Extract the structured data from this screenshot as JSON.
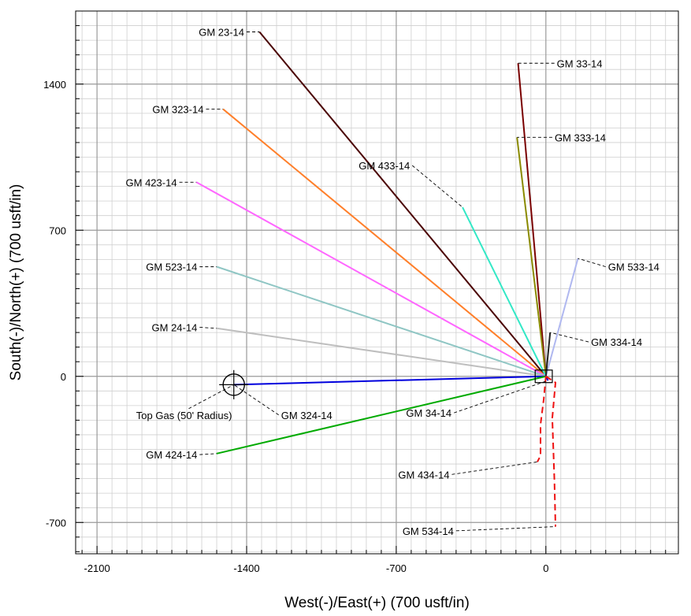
{
  "chart_data": {
    "type": "line",
    "xlabel": "West(-)/East(+) (700 usft/in)",
    "ylabel": "South(-)/North(+) (700 usft/in)",
    "xlim": [
      -2200,
      620
    ],
    "ylim": [
      -850,
      1750
    ],
    "x_ticks": [
      -2100,
      -1400,
      -700,
      0
    ],
    "y_ticks": [
      -700,
      0,
      700,
      1400
    ],
    "x_tick_labels": [
      "-2100",
      "-1400",
      "-700",
      "0"
    ],
    "y_tick_labels": [
      "-700",
      "0",
      "700",
      "1400"
    ],
    "grid": true,
    "minor_grid_step": 70,
    "colors": {
      "grid_major": "#9a9a9a",
      "grid_minor": "#cfcfcf",
      "leader": "#000000"
    },
    "series": [
      {
        "name": "GM 23-14",
        "color": "#4a0000",
        "dash": false,
        "points": [
          [
            0,
            0
          ],
          [
            -1340,
            1650
          ]
        ],
        "end": [
          -1340,
          1650
        ],
        "label_x": -1400,
        "label_y": 1650
      },
      {
        "name": "GM 33-14",
        "color": "#7a0000",
        "dash": false,
        "points": [
          [
            0,
            0
          ],
          [
            -130,
            1500
          ]
        ],
        "end": [
          -130,
          1500
        ],
        "label_x": 40,
        "label_y": 1500
      },
      {
        "name": "GM 323-14",
        "color": "#ff7f2a",
        "dash": false,
        "points": [
          [
            0,
            0
          ],
          [
            -1510,
            1280
          ]
        ],
        "end": [
          -1510,
          1280
        ],
        "label_x": -1590,
        "label_y": 1280
      },
      {
        "name": "GM 333-14",
        "color": "#8a8a00",
        "dash": false,
        "points": [
          [
            0,
            0
          ],
          [
            -135,
            1145
          ]
        ],
        "end": [
          -135,
          1145
        ],
        "label_x": 30,
        "label_y": 1145
      },
      {
        "name": "GM 433-14",
        "color": "#33e8c6",
        "dash": false,
        "points": [
          [
            0,
            0
          ],
          [
            -390,
            810
          ]
        ],
        "end": [
          -390,
          810
        ],
        "label_x": -625,
        "label_y": 1010
      },
      {
        "name": "GM 423-14",
        "color": "#ff66ff",
        "dash": false,
        "points": [
          [
            0,
            0
          ],
          [
            -1635,
            930
          ]
        ],
        "end": [
          -1635,
          930
        ],
        "label_x": -1715,
        "label_y": 930
      },
      {
        "name": "GM 533-14",
        "color": "#b0b8f0",
        "dash": false,
        "points": [
          [
            0,
            0
          ],
          [
            150,
            565
          ]
        ],
        "end": [
          150,
          565
        ],
        "label_x": 280,
        "label_y": 525
      },
      {
        "name": "GM 523-14",
        "color": "#8fc6c4",
        "dash": false,
        "points": [
          [
            0,
            0
          ],
          [
            -1540,
            525
          ]
        ],
        "end": [
          -1540,
          525
        ],
        "label_x": -1620,
        "label_y": 525
      },
      {
        "name": "GM 24-14",
        "color": "#bebebe",
        "dash": false,
        "points": [
          [
            0,
            0
          ],
          [
            -1540,
            230
          ]
        ],
        "end": [
          -1540,
          230
        ],
        "label_x": -1620,
        "label_y": 235
      },
      {
        "name": "GM 334-14",
        "color": "#222222",
        "dash": false,
        "points": [
          [
            0,
            0
          ],
          [
            20,
            210
          ]
        ],
        "end": [
          20,
          210
        ],
        "label_x": 200,
        "label_y": 165
      },
      {
        "name": "GM 324-14",
        "color": "#0000dd",
        "dash": false,
        "points": [
          [
            0,
            0
          ],
          [
            -1460,
            -40
          ]
        ],
        "end": [
          -1460,
          -40
        ],
        "label_x": -1250,
        "label_y": -185
      },
      {
        "name": "GM 34-14",
        "color": "#0000dd",
        "dash": false,
        "points": [
          [
            0,
            0
          ],
          [
            10,
            -20
          ]
        ],
        "end": [
          10,
          -20
        ],
        "label_x": -430,
        "label_y": -175
      },
      {
        "name": "GM 424-14",
        "color": "#00aa00",
        "dash": false,
        "points": [
          [
            0,
            0
          ],
          [
            -1540,
            -370
          ]
        ],
        "end": [
          -1540,
          -370
        ],
        "label_x": -1620,
        "label_y": -375
      },
      {
        "name": "GM 434-14",
        "color": "#ee1111",
        "dash": true,
        "points": [
          [
            0,
            0
          ],
          [
            -10,
            -110
          ],
          [
            -25,
            -230
          ],
          [
            -25,
            -380
          ],
          [
            -40,
            -410
          ]
        ],
        "end": [
          -40,
          -410
        ],
        "label_x": -440,
        "label_y": -470
      },
      {
        "name": "GM 534-14",
        "color": "#ee1111",
        "dash": true,
        "points": [
          [
            0,
            0
          ],
          [
            45,
            -30
          ],
          [
            30,
            -200
          ],
          [
            40,
            -500
          ],
          [
            45,
            -720
          ]
        ],
        "end": [
          45,
          -720
        ],
        "label_x": -420,
        "label_y": -740
      }
    ],
    "annotation": {
      "text": "Top Gas (50' Radius)",
      "x": -1460,
      "y": -40,
      "radius": 50,
      "label_x": -1800,
      "label_y": -185
    }
  }
}
